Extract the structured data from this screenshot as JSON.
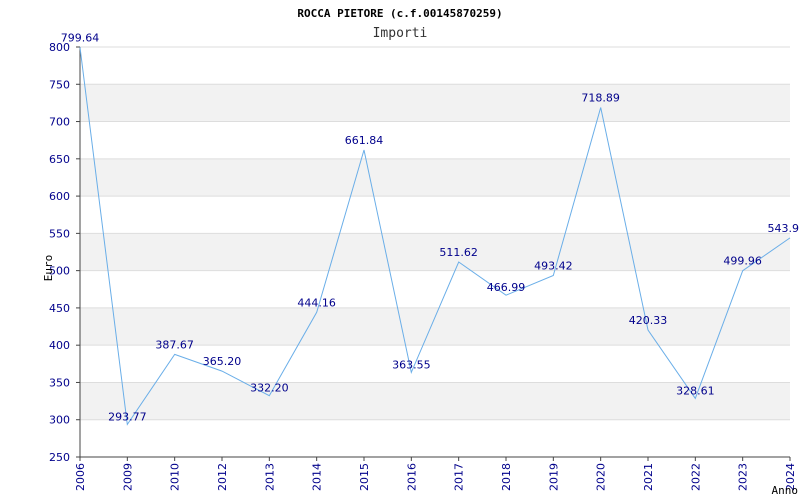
{
  "chart_data": {
    "type": "line",
    "title": "ROCCA PIETORE (c.f.00145870259)",
    "subtitle": "Importi",
    "xlabel": "Anno",
    "ylabel": "Euro",
    "ylim": [
      250,
      800
    ],
    "yticks": [
      "250",
      "300",
      "350",
      "400",
      "450",
      "500",
      "550",
      "600",
      "650",
      "700",
      "750",
      "800"
    ],
    "grid": true,
    "colors": {
      "line": "#6aaee8",
      "band": "#f2f2f2",
      "tick_text": "#00008b",
      "axis": "#444444"
    },
    "points": [
      {
        "x": "2006",
        "y": 799.64,
        "label": "799.64"
      },
      {
        "x": "2009",
        "y": 293.77,
        "label": "293.77"
      },
      {
        "x": "2010",
        "y": 387.67,
        "label": "387.67"
      },
      {
        "x": "2012",
        "y": 365.2,
        "label": "365.20"
      },
      {
        "x": "2013",
        "y": 332.2,
        "label": "332.20"
      },
      {
        "x": "2014",
        "y": 444.16,
        "label": "444.16"
      },
      {
        "x": "2015",
        "y": 661.84,
        "label": "661.84"
      },
      {
        "x": "2016",
        "y": 363.55,
        "label": "363.55"
      },
      {
        "x": "2017",
        "y": 511.62,
        "label": "511.62"
      },
      {
        "x": "2018",
        "y": 466.99,
        "label": "466.99"
      },
      {
        "x": "2019",
        "y": 493.42,
        "label": "493.42"
      },
      {
        "x": "2020",
        "y": 718.89,
        "label": "718.89"
      },
      {
        "x": "2021",
        "y": 420.33,
        "label": "420.33"
      },
      {
        "x": "2022",
        "y": 328.61,
        "label": "328.61"
      },
      {
        "x": "2023",
        "y": 499.96,
        "label": "499.96"
      },
      {
        "x": "2024",
        "y": 543.9,
        "label": "543.9"
      }
    ]
  }
}
